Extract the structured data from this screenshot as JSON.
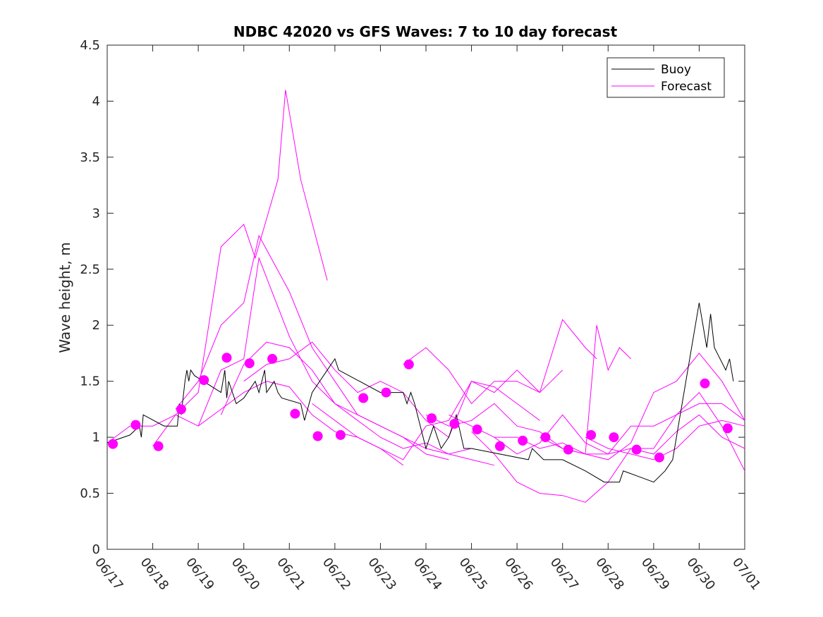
{
  "chart_data": {
    "type": "line",
    "title": "NDBC 42020 vs GFS Waves: 7 to 10 day forecast",
    "xlabel": "",
    "ylabel": "Wave height, m",
    "xlim": [
      "06/17",
      "07/01"
    ],
    "ylim": [
      0,
      4.5
    ],
    "x_ticks": [
      "06/17",
      "06/18",
      "06/19",
      "06/20",
      "06/21",
      "06/22",
      "06/23",
      "06/24",
      "06/25",
      "06/26",
      "06/27",
      "06/28",
      "06/29",
      "06/30",
      "07/01"
    ],
    "y_ticks": [
      "0",
      "0.5",
      "1",
      "1.5",
      "2",
      "2.5",
      "3",
      "3.5",
      "4",
      "4.5"
    ],
    "grid": false,
    "legend_position": "top-right",
    "colors": {
      "buoy": "#000000",
      "forecast": "#ff00ff",
      "marker": "#ff00ff"
    },
    "legend": [
      {
        "label": "Buoy",
        "color": "#000000"
      },
      {
        "label": "Forecast",
        "color": "#ff00ff"
      }
    ],
    "buoy": {
      "name": "Buoy",
      "points": [
        [
          "06/17 00:00",
          0.95
        ],
        [
          "06/17 12:00",
          1.02
        ],
        [
          "06/17 17:00",
          1.1
        ],
        [
          "06/17 18:00",
          1.0
        ],
        [
          "06/17 19:00",
          1.2
        ],
        [
          "06/18 06:00",
          1.1
        ],
        [
          "06/18 13:00",
          1.1
        ],
        [
          "06/18 14:00",
          1.3
        ],
        [
          "06/18 15:00",
          1.2
        ],
        [
          "06/18 17:00",
          1.5
        ],
        [
          "06/18 18:00",
          1.6
        ],
        [
          "06/18 19:00",
          1.5
        ],
        [
          "06/18 20:00",
          1.6
        ],
        [
          "06/18 22:00",
          1.55
        ],
        [
          "06/19 12:00",
          1.4
        ],
        [
          "06/19 14:00",
          1.6
        ],
        [
          "06/19 15:00",
          1.35
        ],
        [
          "06/19 16:00",
          1.5
        ],
        [
          "06/19 18:00",
          1.4
        ],
        [
          "06/19 20:00",
          1.3
        ],
        [
          "06/20 00:00",
          1.35
        ],
        [
          "06/20 06:00",
          1.5
        ],
        [
          "06/20 08:00",
          1.4
        ],
        [
          "06/20 11:00",
          1.6
        ],
        [
          "06/20 12:00",
          1.4
        ],
        [
          "06/20 16:00",
          1.5
        ],
        [
          "06/20 18:00",
          1.4
        ],
        [
          "06/20 20:00",
          1.35
        ],
        [
          "06/21 06:00",
          1.3
        ],
        [
          "06/21 08:00",
          1.15
        ],
        [
          "06/21 12:00",
          1.4
        ],
        [
          "06/21 20:00",
          1.6
        ],
        [
          "06/22 00:00",
          1.7
        ],
        [
          "06/22 02:00",
          1.6
        ],
        [
          "06/23 00:00",
          1.4
        ],
        [
          "06/23 12:00",
          1.4
        ],
        [
          "06/23 14:00",
          1.3
        ],
        [
          "06/23 16:00",
          1.4
        ],
        [
          "06/23 18:00",
          1.3
        ],
        [
          "06/24 00:00",
          0.9
        ],
        [
          "06/24 04:00",
          1.1
        ],
        [
          "06/24 08:00",
          0.9
        ],
        [
          "06/24 12:00",
          1.0
        ],
        [
          "06/24 16:00",
          1.2
        ],
        [
          "06/24 20:00",
          0.9
        ],
        [
          "06/25 00:00",
          0.9
        ],
        [
          "06/26 06:00",
          0.8
        ],
        [
          "06/26 08:00",
          0.9
        ],
        [
          "06/26 14:00",
          0.8
        ],
        [
          "06/27 00:00",
          0.8
        ],
        [
          "06/27 12:00",
          0.7
        ],
        [
          "06/27 22:00",
          0.6
        ],
        [
          "06/28 06:00",
          0.6
        ],
        [
          "06/28 08:00",
          0.7
        ],
        [
          "06/28 16:00",
          0.65
        ],
        [
          "06/29 00:00",
          0.6
        ],
        [
          "06/29 06:00",
          0.7
        ],
        [
          "06/29 10:00",
          0.8
        ],
        [
          "06/30 00:00",
          2.2
        ],
        [
          "06/30 04:00",
          1.8
        ],
        [
          "06/30 06:00",
          2.1
        ],
        [
          "06/30 08:00",
          1.8
        ],
        [
          "06/30 14:00",
          1.6
        ],
        [
          "06/30 16:00",
          1.7
        ],
        [
          "06/30 18:00",
          1.5
        ]
      ]
    },
    "series": [
      {
        "points": [
          [
            "06/17 00:00",
            0.95
          ],
          [
            "06/17 12:00",
            1.1
          ],
          [
            "06/18 00:00",
            1.1
          ],
          [
            "06/18 12:00",
            1.2
          ],
          [
            "06/19 00:00",
            1.1
          ],
          [
            "06/19 12:00",
            1.25
          ],
          [
            "06/20 00:00",
            1.4
          ],
          [
            "06/20 12:00",
            1.5
          ],
          [
            "06/21 00:00",
            1.45
          ],
          [
            "06/21 12:00",
            1.2
          ],
          [
            "06/22 00:00",
            1.05
          ],
          [
            "06/22 12:00",
            1.0
          ],
          [
            "06/23 00:00",
            0.9
          ],
          [
            "06/23 12:00",
            0.75
          ]
        ]
      },
      {
        "points": [
          [
            "06/18 00:00",
            0.92
          ],
          [
            "06/18 12:00",
            1.2
          ],
          [
            "06/19 00:00",
            1.4
          ],
          [
            "06/19 12:00",
            2.7
          ],
          [
            "06/20 00:00",
            2.9
          ],
          [
            "06/20 06:00",
            2.6
          ],
          [
            "06/20 18:00",
            3.3
          ],
          [
            "06/20 22:00",
            4.1
          ],
          [
            "06/21 06:00",
            3.3
          ],
          [
            "06/21 20:00",
            2.4
          ]
        ]
      },
      {
        "points": [
          [
            "06/18 12:00",
            1.25
          ],
          [
            "06/19 00:00",
            1.5
          ],
          [
            "06/19 12:00",
            2.0
          ],
          [
            "06/20 00:00",
            2.2
          ],
          [
            "06/20 08:00",
            2.8
          ],
          [
            "06/21 00:00",
            2.3
          ],
          [
            "06/21 12:00",
            1.8
          ],
          [
            "06/22 00:00",
            1.5
          ],
          [
            "06/22 12:00",
            1.2
          ],
          [
            "06/23 00:00",
            1.1
          ],
          [
            "06/23 12:00",
            1.0
          ],
          [
            "06/24 00:00",
            0.85
          ],
          [
            "06/24 12:00",
            0.8
          ]
        ]
      },
      {
        "points": [
          [
            "06/19 00:00",
            1.1
          ],
          [
            "06/19 12:00",
            1.6
          ],
          [
            "06/20 00:00",
            1.7
          ],
          [
            "06/20 08:00",
            2.6
          ],
          [
            "06/21 00:00",
            1.9
          ],
          [
            "06/21 12:00",
            1.5
          ],
          [
            "06/22 00:00",
            1.3
          ],
          [
            "06/22 12:00",
            1.2
          ],
          [
            "06/23 00:00",
            1.1
          ],
          [
            "06/23 12:00",
            1.0
          ],
          [
            "06/24 00:00",
            0.9
          ],
          [
            "06/24 12:00",
            0.85
          ],
          [
            "06/25 00:00",
            0.8
          ],
          [
            "06/25 12:00",
            0.75
          ]
        ]
      },
      {
        "points": [
          [
            "06/19 12:00",
            1.2
          ],
          [
            "06/20 00:00",
            1.65
          ],
          [
            "06/20 12:00",
            1.85
          ],
          [
            "06/21 00:00",
            1.8
          ],
          [
            "06/21 12:00",
            1.6
          ],
          [
            "06/22 00:00",
            1.3
          ],
          [
            "06/22 12:00",
            1.15
          ],
          [
            "06/23 00:00",
            1.0
          ],
          [
            "06/23 12:00",
            0.9
          ],
          [
            "06/24 00:00",
            0.95
          ],
          [
            "06/24 12:00",
            0.85
          ],
          [
            "06/25 00:00",
            0.9
          ]
        ]
      },
      {
        "points": [
          [
            "06/20 00:00",
            1.5
          ],
          [
            "06/20 12:00",
            1.65
          ],
          [
            "06/21 00:00",
            1.7
          ],
          [
            "06/21 12:00",
            1.85
          ],
          [
            "06/22 00:00",
            1.6
          ],
          [
            "06/22 12:00",
            1.4
          ],
          [
            "06/23 00:00",
            1.5
          ],
          [
            "06/23 12:00",
            1.4
          ],
          [
            "06/24 00:00",
            1.15
          ],
          [
            "06/24 12:00",
            1.0
          ],
          [
            "06/25 00:00",
            1.5
          ],
          [
            "06/25 12:00",
            1.45
          ],
          [
            "06/26 00:00",
            1.3
          ],
          [
            "06/26 12:00",
            1.15
          ]
        ]
      },
      {
        "points": [
          [
            "06/21 12:00",
            1.3
          ],
          [
            "06/22 00:00",
            1.15
          ],
          [
            "06/22 12:00",
            1.0
          ],
          [
            "06/23 00:00",
            0.9
          ],
          [
            "06/23 12:00",
            0.8
          ],
          [
            "06/24 00:00",
            1.1
          ],
          [
            "06/24 12:00",
            1.15
          ],
          [
            "06/25 00:00",
            1.5
          ],
          [
            "06/25 12:00",
            1.4
          ],
          [
            "06/26 00:00",
            1.6
          ],
          [
            "06/26 12:00",
            1.4
          ],
          [
            "06/27 00:00",
            1.6
          ]
        ]
      },
      {
        "points": [
          [
            "06/23 12:00",
            1.65
          ],
          [
            "06/24 00:00",
            1.8
          ],
          [
            "06/24 12:00",
            1.6
          ],
          [
            "06/25 00:00",
            1.3
          ],
          [
            "06/25 12:00",
            1.5
          ],
          [
            "06/26 00:00",
            1.5
          ],
          [
            "06/26 12:00",
            1.4
          ],
          [
            "06/27 00:00",
            2.05
          ],
          [
            "06/27 12:00",
            1.8
          ],
          [
            "06/27 18:00",
            1.7
          ]
        ]
      },
      {
        "points": [
          [
            "06/24 00:00",
            1.2
          ],
          [
            "06/24 12:00",
            1.1
          ],
          [
            "06/25 00:00",
            1.15
          ],
          [
            "06/25 12:00",
            1.3
          ],
          [
            "06/26 00:00",
            1.1
          ],
          [
            "06/26 12:00",
            1.05
          ],
          [
            "06/27 00:00",
            0.9
          ],
          [
            "06/27 12:00",
            0.85
          ],
          [
            "06/28 00:00",
            0.8
          ],
          [
            "06/28 12:00",
            0.95
          ],
          [
            "06/29 00:00",
            1.4
          ],
          [
            "06/29 12:00",
            1.5
          ],
          [
            "06/30 00:00",
            1.75
          ],
          [
            "06/30 12:00",
            1.5
          ],
          [
            "07/01 00:00",
            1.15
          ]
        ]
      },
      {
        "points": [
          [
            "06/24 12:00",
            1.2
          ],
          [
            "06/25 00:00",
            1.1
          ],
          [
            "06/25 12:00",
            1.0
          ],
          [
            "06/26 00:00",
            0.85
          ],
          [
            "06/26 12:00",
            0.95
          ],
          [
            "06/27 00:00",
            1.2
          ],
          [
            "06/27 12:00",
            0.95
          ],
          [
            "06/28 00:00",
            0.85
          ],
          [
            "06/28 12:00",
            1.1
          ],
          [
            "06/29 00:00",
            1.1
          ],
          [
            "06/29 12:00",
            1.2
          ],
          [
            "06/30 00:00",
            1.3
          ],
          [
            "06/30 12:00",
            1.3
          ],
          [
            "07/01 00:00",
            1.15
          ]
        ]
      },
      {
        "points": [
          [
            "06/25 00:00",
            1.05
          ],
          [
            "06/25 12:00",
            0.85
          ],
          [
            "06/26 00:00",
            0.6
          ],
          [
            "06/26 12:00",
            0.5
          ],
          [
            "06/27 00:00",
            0.48
          ],
          [
            "06/27 12:00",
            0.42
          ],
          [
            "06/28 00:00",
            0.6
          ],
          [
            "06/28 12:00",
            0.9
          ],
          [
            "06/29 00:00",
            0.9
          ],
          [
            "06/29 12:00",
            1.2
          ],
          [
            "06/30 00:00",
            1.4
          ],
          [
            "06/30 12:00",
            1.1
          ],
          [
            "07/01 00:00",
            0.7
          ]
        ]
      },
      {
        "points": [
          [
            "06/25 12:00",
            1.0
          ],
          [
            "06/26 00:00",
            1.0
          ],
          [
            "06/26 12:00",
            0.9
          ],
          [
            "06/27 00:00",
            0.95
          ],
          [
            "06/27 12:00",
            0.85
          ],
          [
            "06/27 18:00",
            2.0
          ],
          [
            "06/28 00:00",
            1.6
          ],
          [
            "06/28 06:00",
            1.8
          ],
          [
            "06/28 12:00",
            1.7
          ]
        ]
      },
      {
        "points": [
          [
            "06/26 12:00",
            1.0
          ],
          [
            "06/27 00:00",
            0.9
          ],
          [
            "06/27 12:00",
            0.85
          ],
          [
            "06/28 00:00",
            0.85
          ],
          [
            "06/28 12:00",
            0.9
          ],
          [
            "06/29 00:00",
            0.85
          ],
          [
            "06/29 12:00",
            1.05
          ],
          [
            "06/30 00:00",
            1.2
          ],
          [
            "06/30 12:00",
            1.0
          ],
          [
            "07/01 00:00",
            0.9
          ]
        ]
      },
      {
        "points": [
          [
            "06/27 12:00",
            1.0
          ],
          [
            "06/28 00:00",
            0.9
          ],
          [
            "06/28 12:00",
            0.85
          ],
          [
            "06/29 00:00",
            0.8
          ],
          [
            "06/29 12:00",
            0.9
          ],
          [
            "06/30 00:00",
            1.1
          ],
          [
            "06/30 12:00",
            1.15
          ],
          [
            "07/01 00:00",
            1.1
          ]
        ]
      }
    ],
    "markers": [
      [
        "06/17 03:00",
        0.94
      ],
      [
        "06/17 15:00",
        1.11
      ],
      [
        "06/18 03:00",
        0.92
      ],
      [
        "06/18 15:00",
        1.25
      ],
      [
        "06/19 03:00",
        1.51
      ],
      [
        "06/19 15:00",
        1.71
      ],
      [
        "06/20 03:00",
        1.66
      ],
      [
        "06/20 15:00",
        1.7
      ],
      [
        "06/21 03:00",
        1.21
      ],
      [
        "06/21 15:00",
        1.01
      ],
      [
        "06/22 03:00",
        1.02
      ],
      [
        "06/22 15:00",
        1.35
      ],
      [
        "06/23 03:00",
        1.4
      ],
      [
        "06/23 15:00",
        1.65
      ],
      [
        "06/24 03:00",
        1.17
      ],
      [
        "06/24 15:00",
        1.12
      ],
      [
        "06/25 03:00",
        1.07
      ],
      [
        "06/25 15:00",
        0.92
      ],
      [
        "06/26 03:00",
        0.97
      ],
      [
        "06/26 15:00",
        1.0
      ],
      [
        "06/27 03:00",
        0.89
      ],
      [
        "06/27 15:00",
        1.02
      ],
      [
        "06/28 03:00",
        1.0
      ],
      [
        "06/28 15:00",
        0.89
      ],
      [
        "06/29 03:00",
        0.82
      ],
      [
        "06/30 03:00",
        1.48
      ],
      [
        "06/30 15:00",
        1.08
      ]
    ]
  }
}
